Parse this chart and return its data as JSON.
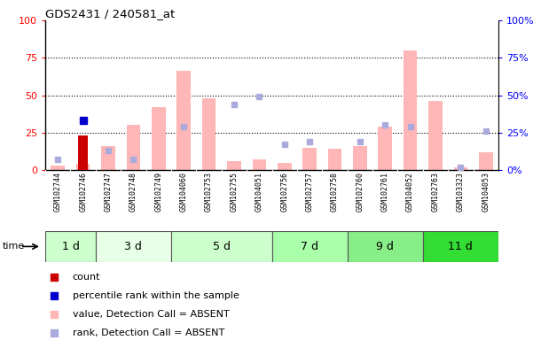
{
  "title": "GDS2431 / 240581_at",
  "samples": [
    "GSM102744",
    "GSM102746",
    "GSM102747",
    "GSM102748",
    "GSM102749",
    "GSM104060",
    "GSM102753",
    "GSM102755",
    "GSM104051",
    "GSM102756",
    "GSM102757",
    "GSM102758",
    "GSM102760",
    "GSM102761",
    "GSM104052",
    "GSM102763",
    "GSM103323",
    "GSM104053"
  ],
  "time_groups": [
    {
      "label": "1 d",
      "start": 0,
      "end": 2,
      "color": "#ccffcc"
    },
    {
      "label": "3 d",
      "start": 2,
      "end": 5,
      "color": "#e8ffe8"
    },
    {
      "label": "5 d",
      "start": 5,
      "end": 9,
      "color": "#ccffcc"
    },
    {
      "label": "7 d",
      "start": 9,
      "end": 12,
      "color": "#aaffaa"
    },
    {
      "label": "9 d",
      "start": 12,
      "end": 15,
      "color": "#88ee88"
    },
    {
      "label": "11 d",
      "start": 15,
      "end": 18,
      "color": "#33dd33"
    }
  ],
  "pink_bars": [
    3,
    4,
    16,
    30,
    42,
    66,
    48,
    6,
    7,
    5,
    15,
    14,
    16,
    29,
    80,
    46,
    2,
    12
  ],
  "blue_squares": [
    7,
    null,
    13,
    7,
    null,
    29,
    null,
    44,
    49,
    17,
    19,
    null,
    19,
    30,
    29,
    null,
    2,
    26
  ],
  "red_bars": [
    null,
    23,
    null,
    null,
    null,
    null,
    null,
    null,
    null,
    null,
    null,
    null,
    null,
    null,
    null,
    null,
    null,
    null
  ],
  "dark_blue_squares": [
    null,
    33,
    null,
    null,
    null,
    null,
    null,
    null,
    null,
    null,
    null,
    null,
    null,
    null,
    null,
    null,
    null,
    null
  ],
  "ylim": [
    0,
    100
  ],
  "yticks": [
    0,
    25,
    50,
    75,
    100
  ],
  "plot_bg": "#ffffff",
  "xaxis_bg": "#d8d8d8",
  "pink_color": "#ffb6b6",
  "blue_sq_color": "#aaaadd",
  "red_color": "#cc0000",
  "dark_blue_color": "#0000cc",
  "legend_items": [
    {
      "color": "#cc0000",
      "label": "count"
    },
    {
      "color": "#0000cc",
      "label": "percentile rank within the sample"
    },
    {
      "color": "#ffb6b6",
      "label": "value, Detection Call = ABSENT"
    },
    {
      "color": "#aaaadd",
      "label": "rank, Detection Call = ABSENT"
    }
  ]
}
